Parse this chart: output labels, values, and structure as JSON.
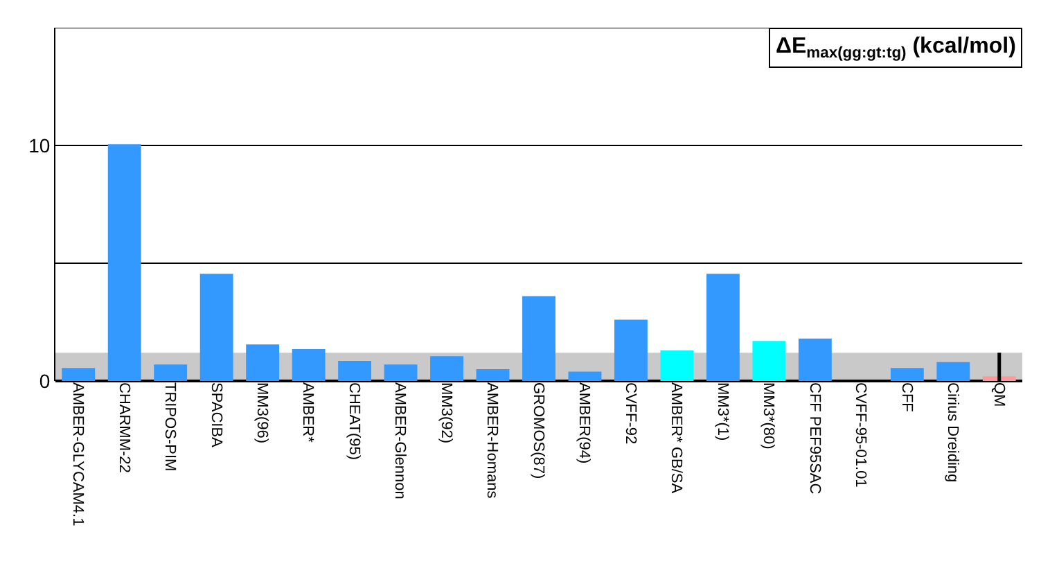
{
  "chart_data": {
    "type": "bar",
    "title": "ΔE$_{max(gg:gt:tg)}$ (kcal/mol)",
    "categories": [
      "AMBER-GLYCAM4.1",
      "CHARMM-22",
      "TRIPOS-PIM",
      "SPACIBA",
      "MM3(96)",
      "AMBER*",
      "CHEAT(95)",
      "AMBER-Glennon",
      "MM3(92)",
      "AMBER-Homans",
      "GROMOS(87)",
      "AMBER(94)",
      "CVFF-92",
      "AMBER* GB/SA",
      "MM3*(1)",
      "MM3*(80)",
      "CFF PEF95SAC",
      "CVFF-95-01.01",
      "CFF",
      "Cirius Dreiding",
      "QM"
    ],
    "values": [
      0.55,
      10.05,
      0.7,
      4.55,
      1.55,
      1.35,
      0.85,
      0.7,
      1.05,
      0.5,
      3.6,
      0.4,
      2.6,
      1.3,
      4.55,
      1.7,
      1.8,
      null,
      0.55,
      0.8,
      0.2
    ],
    "colors": [
      "#3399ff",
      "#3399ff",
      "#3399ff",
      "#3399ff",
      "#3399ff",
      "#3399ff",
      "#3399ff",
      "#3399ff",
      "#3399ff",
      "#3399ff",
      "#3399ff",
      "#3399ff",
      "#3399ff",
      "#00ffff",
      "#3399ff",
      "#00ffff",
      "#3399ff",
      "#3399ff",
      "#3399ff",
      "#3399ff",
      "#ff9999"
    ],
    "errors": [
      null,
      null,
      null,
      null,
      null,
      null,
      null,
      null,
      null,
      null,
      null,
      null,
      null,
      null,
      null,
      null,
      null,
      null,
      null,
      null,
      [
        0,
        1.2
      ]
    ],
    "bands": [
      {
        "axis": "y",
        "from": 0,
        "to": 1.2,
        "color": "#bbbbbb"
      }
    ],
    "ylim": [
      0,
      15
    ],
    "yticks": [
      0,
      {
        "value": 5,
        "label": null
      },
      10,
      {
        "value": 15,
        "label": null
      }
    ],
    "grid": "y"
  }
}
